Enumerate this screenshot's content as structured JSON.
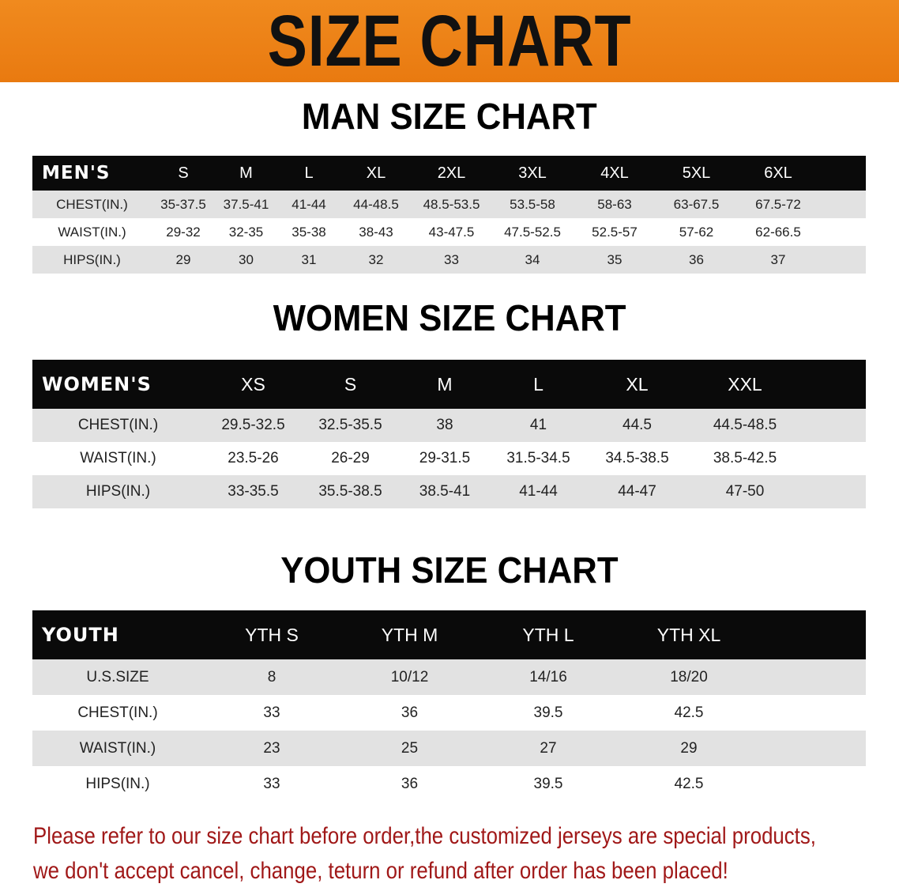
{
  "banner_title": "SIZE CHART",
  "colors": {
    "banner": "#ef8519",
    "header_row": "#0a0a0a",
    "stripe": "#e2e2e2",
    "note": "#a01818"
  },
  "men": {
    "title": "MAN SIZE CHART",
    "header": [
      "MEN'S",
      "S",
      "M",
      "L",
      "XL",
      "2XL",
      "3XL",
      "4XL",
      "5XL",
      "6XL"
    ],
    "rows": [
      [
        "CHEST(IN.)",
        "35-37.5",
        "37.5-41",
        "41-44",
        "44-48.5",
        "48.5-53.5",
        "53.5-58",
        "58-63",
        "63-67.5",
        "67.5-72"
      ],
      [
        "WAIST(IN.)",
        "29-32",
        "32-35",
        "35-38",
        "38-43",
        "43-47.5",
        "47.5-52.5",
        "52.5-57",
        "57-62",
        "62-66.5"
      ],
      [
        "HIPS(IN.)",
        "29",
        "30",
        "31",
        "32",
        "33",
        "34",
        "35",
        "36",
        "37"
      ]
    ]
  },
  "women": {
    "title": "WOMEN SIZE CHART",
    "header": [
      "WOMEN'S",
      "XS",
      "S",
      "M",
      "L",
      "XL",
      "XXL"
    ],
    "rows": [
      [
        "CHEST(IN.)",
        "29.5-32.5",
        "32.5-35.5",
        "38",
        "41",
        "44.5",
        "44.5-48.5"
      ],
      [
        "WAIST(IN.)",
        "23.5-26",
        "26-29",
        "29-31.5",
        "31.5-34.5",
        "34.5-38.5",
        "38.5-42.5"
      ],
      [
        "HIPS(IN.)",
        "33-35.5",
        "35.5-38.5",
        "38.5-41",
        "41-44",
        "44-47",
        "47-50"
      ]
    ]
  },
  "youth": {
    "title": "YOUTH SIZE CHART",
    "header": [
      "YOUTH",
      "YTH S",
      "YTH M",
      "YTH L",
      "YTH XL"
    ],
    "rows": [
      [
        "U.S.SIZE",
        "8",
        "10/12",
        "14/16",
        "18/20"
      ],
      [
        "CHEST(IN.)",
        "33",
        "36",
        "39.5",
        "42.5"
      ],
      [
        "WAIST(IN.)",
        "23",
        "25",
        "27",
        "29"
      ],
      [
        "HIPS(IN.)",
        "33",
        "36",
        "39.5",
        "42.5"
      ]
    ]
  },
  "note": {
    "line1": "Please refer to our size chart before order,the customized jerseys are special products,",
    "line2": "we don't accept cancel, change, teturn or refund after order has been placed!"
  }
}
